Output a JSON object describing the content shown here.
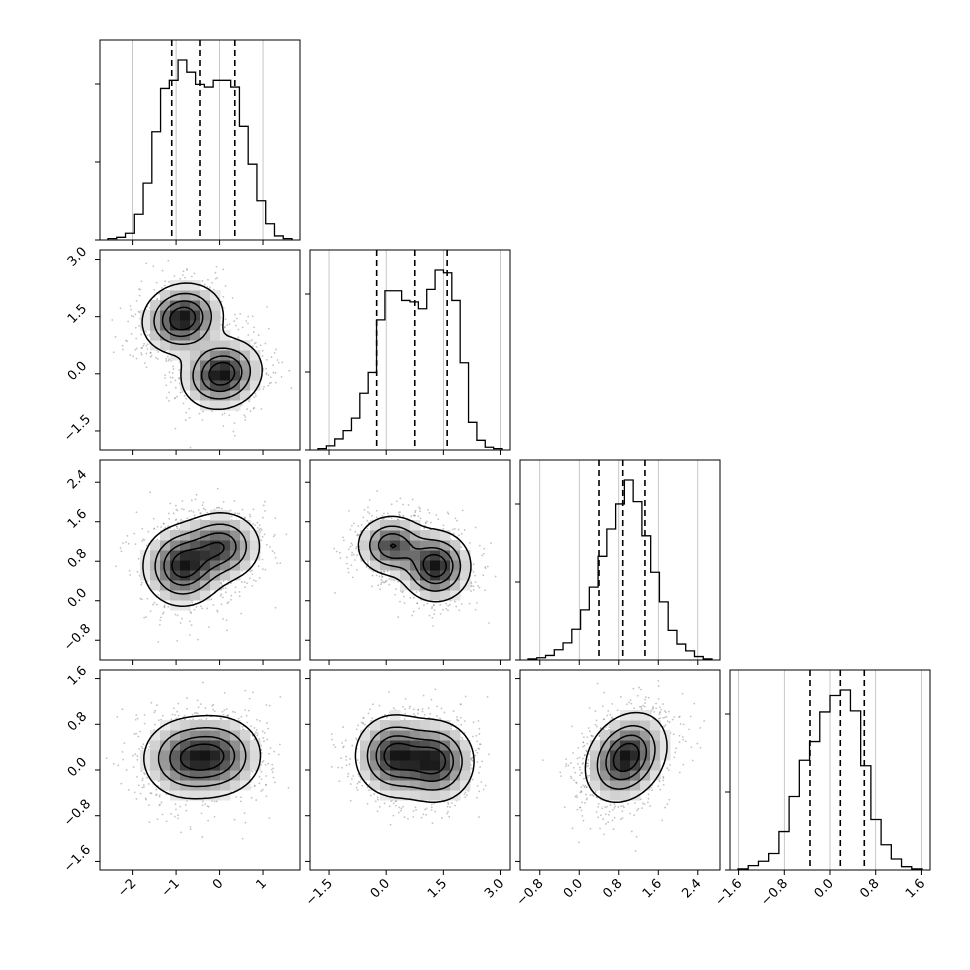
{
  "chart_data": {
    "type": "corner",
    "title": "",
    "variables": [
      "",
      "",
      "",
      ""
    ],
    "ranges": [
      [
        -2.75,
        1.85
      ],
      [
        -2.0,
        3.25
      ],
      [
        -1.2,
        2.85
      ],
      [
        -1.75,
        1.75
      ]
    ],
    "ticks": [
      {
        "values": [
          -2,
          -1,
          0,
          1
        ],
        "labels": [
          "−2",
          "−1",
          "0",
          "1"
        ]
      },
      {
        "values": [
          -1.5,
          0.0,
          1.5,
          3.0
        ],
        "labels": [
          "−1.5",
          "0.0",
          "1.5",
          "3.0"
        ]
      },
      {
        "values": [
          -0.8,
          0.0,
          0.8,
          1.6,
          2.4
        ],
        "labels": [
          "−0.8",
          "0.0",
          "0.8",
          "1.6",
          "2.4"
        ]
      },
      {
        "values": [
          -1.6,
          -0.8,
          0.0,
          0.8,
          1.6
        ],
        "labels": [
          "−1.6",
          "−0.8",
          "0.0",
          "0.8",
          "1.6"
        ]
      }
    ],
    "quantiles": [
      [
        -1.1,
        -0.45,
        0.35
      ],
      [
        -0.25,
        0.75,
        1.6
      ],
      [
        0.4,
        0.88,
        1.33
      ],
      [
        -0.35,
        0.18,
        0.6
      ]
    ],
    "histograms": [
      {
        "counts": [
          1,
          2,
          5,
          19,
          42,
          80,
          112,
          118,
          133,
          124,
          115,
          113,
          118,
          118,
          113,
          84,
          56,
          29,
          12,
          3,
          1
        ]
      },
      {
        "counts": [
          1,
          3,
          8,
          14,
          23,
          41,
          56,
          94,
          115,
          115,
          108,
          107,
          102,
          116,
          130,
          128,
          108,
          63,
          20,
          7,
          2,
          1
        ]
      },
      {
        "counts": [
          1,
          2,
          4,
          9,
          15,
          27,
          44,
          64,
          91,
          115,
          137,
          158,
          139,
          109,
          77,
          51,
          26,
          14,
          8,
          3,
          1
        ]
      },
      {
        "counts": [
          1,
          4,
          8,
          15,
          35,
          67,
          100,
          117,
          144,
          159,
          164,
          145,
          95,
          46,
          23,
          10,
          3,
          1
        ]
      }
    ],
    "densities": [
      {
        "x": 0,
        "y": 1,
        "components": [
          {
            "mx": -0.85,
            "my": 1.45,
            "sx": 0.45,
            "sy": 0.45,
            "rho": 0.1,
            "w": 0.5
          },
          {
            "mx": 0.05,
            "my": 0.0,
            "sx": 0.45,
            "sy": 0.45,
            "rho": 0.1,
            "w": 0.5
          }
        ]
      },
      {
        "x": 0,
        "y": 2,
        "components": [
          {
            "mx": -0.85,
            "my": 0.7,
            "sx": 0.45,
            "sy": 0.4,
            "rho": 0.0,
            "w": 0.55
          },
          {
            "mx": 0.05,
            "my": 1.1,
            "sx": 0.45,
            "sy": 0.35,
            "rho": 0.0,
            "w": 0.45
          }
        ]
      },
      {
        "x": 0,
        "y": 3,
        "components": [
          {
            "mx": -0.8,
            "my": 0.2,
            "sx": 0.5,
            "sy": 0.35,
            "rho": 0.0,
            "w": 0.5
          },
          {
            "mx": 0.0,
            "my": 0.25,
            "sx": 0.5,
            "sy": 0.35,
            "rho": 0.0,
            "w": 0.5
          }
        ]
      },
      {
        "x": 1,
        "y": 2,
        "components": [
          {
            "mx": 0.15,
            "my": 1.12,
            "sx": 0.45,
            "sy": 0.3,
            "rho": 0.0,
            "w": 0.45
          },
          {
            "mx": 1.3,
            "my": 0.7,
            "sx": 0.45,
            "sy": 0.35,
            "rho": 0.0,
            "w": 0.55
          }
        ]
      },
      {
        "x": 1,
        "y": 3,
        "components": [
          {
            "mx": 0.2,
            "my": 0.25,
            "sx": 0.5,
            "sy": 0.35,
            "rho": 0.0,
            "w": 0.5
          },
          {
            "mx": 1.3,
            "my": 0.15,
            "sx": 0.5,
            "sy": 0.35,
            "rho": 0.0,
            "w": 0.5
          }
        ]
      },
      {
        "x": 2,
        "y": 3,
        "components": [
          {
            "mx": 0.95,
            "my": 0.22,
            "sx": 0.4,
            "sy": 0.38,
            "rho": 0.25,
            "w": 1.0
          }
        ]
      }
    ],
    "contour_levels": [
      0.12,
      0.35,
      0.6,
      0.82
    ],
    "grid": true,
    "colors": {
      "line": "#000000",
      "grid": "#b0b0b0",
      "points": "#7a7a7a"
    }
  }
}
